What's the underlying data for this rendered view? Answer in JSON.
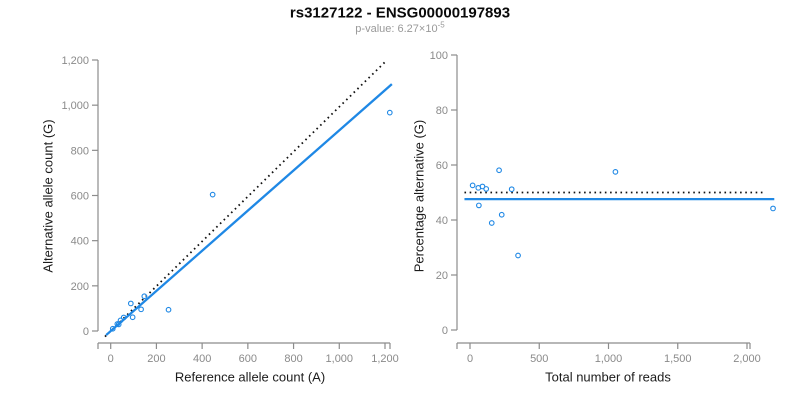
{
  "header": {
    "title": "rs3127122 - ENSG00000197893",
    "subtitle_main": "p-value: 6.27×10",
    "subtitle_exponent": "-5"
  },
  "colors": {
    "accent_blue": "#1f88e5",
    "dotted_black": "#111111",
    "axis_gray": "#8c8c8c",
    "tick_label_gray": "#8a8a8a",
    "subtitle_gray": "#999999",
    "title_black": "#0a0a0a"
  },
  "samples": [
    {
      "ref": 9,
      "alt": 10,
      "total": 19,
      "pct": 52.6
    },
    {
      "ref": 29,
      "alt": 31,
      "total": 60,
      "pct": 51.7
    },
    {
      "ref": 35,
      "alt": 29,
      "total": 64,
      "pct": 45.3
    },
    {
      "ref": 43,
      "alt": 47,
      "total": 90,
      "pct": 52.2
    },
    {
      "ref": 57,
      "alt": 60,
      "total": 117,
      "pct": 51.3
    },
    {
      "ref": 96,
      "alt": 61,
      "total": 157,
      "pct": 38.9
    },
    {
      "ref": 88,
      "alt": 122,
      "total": 210,
      "pct": 58.1
    },
    {
      "ref": 133,
      "alt": 96,
      "total": 229,
      "pct": 41.9
    },
    {
      "ref": 147,
      "alt": 154,
      "total": 301,
      "pct": 51.2
    },
    {
      "ref": 253,
      "alt": 94,
      "total": 347,
      "pct": 27.1
    },
    {
      "ref": 446,
      "alt": 604,
      "total": 1050,
      "pct": 57.5
    },
    {
      "ref": 1221,
      "alt": 967,
      "total": 2188,
      "pct": 44.2
    }
  ],
  "chart_data": [
    {
      "type": "scatter",
      "panel": "left",
      "title": "rs3127122 - ENSG00000197893",
      "subtitle": "p-value: 6.27×10^-5",
      "xlabel": "Reference allele count (A)",
      "ylabel": "Alternative allele count (G)",
      "xlim": [
        0,
        1200
      ],
      "ylim": [
        0,
        1200
      ],
      "grid": false,
      "legend": null,
      "xticks": {
        "values": [
          0,
          200,
          400,
          600,
          800,
          1000,
          1200
        ],
        "labels": [
          "0",
          "200",
          "400",
          "600",
          "800",
          "1,000",
          "1,200"
        ]
      },
      "yticks": {
        "values": [
          0,
          200,
          400,
          600,
          800,
          1000,
          1200
        ],
        "labels": [
          "0",
          "200",
          "400",
          "600",
          "800",
          "1,000",
          "1,200"
        ]
      },
      "points": [
        [
          9,
          10
        ],
        [
          29,
          31
        ],
        [
          35,
          29
        ],
        [
          43,
          47
        ],
        [
          57,
          60
        ],
        [
          96,
          61
        ],
        [
          88,
          122
        ],
        [
          133,
          96
        ],
        [
          147,
          154
        ],
        [
          253,
          94
        ],
        [
          446,
          604
        ],
        [
          1221,
          967
        ]
      ],
      "lines": [
        {
          "name": "identity-line",
          "style": "dotted",
          "color_key": "dotted_black",
          "width": 1.8,
          "from": [
            -25,
            -25
          ],
          "to": [
            1209,
            1200
          ]
        },
        {
          "name": "regression-line",
          "style": "solid",
          "color_key": "accent_blue",
          "width": 2.3,
          "from": [
            -20,
            -18
          ],
          "to": [
            1230,
            1093
          ]
        }
      ]
    },
    {
      "type": "scatter",
      "panel": "right",
      "xlabel": "Total number of reads",
      "ylabel": "Percentage alternative (G)",
      "xlim": [
        0,
        2000
      ],
      "ylim": [
        0,
        100
      ],
      "grid": false,
      "legend": null,
      "xticks": {
        "values": [
          0,
          500,
          1000,
          1500,
          2000
        ],
        "labels": [
          "0",
          "500",
          "1,000",
          "1,500",
          "2,000"
        ]
      },
      "yticks": {
        "values": [
          0,
          20,
          40,
          60,
          80,
          100
        ],
        "labels": [
          "0",
          "20",
          "40",
          "60",
          "80",
          "100"
        ]
      },
      "points": [
        [
          19,
          52.6
        ],
        [
          60,
          51.7
        ],
        [
          64,
          45.3
        ],
        [
          90,
          52.2
        ],
        [
          117,
          51.3
        ],
        [
          157,
          38.9
        ],
        [
          210,
          58.1
        ],
        [
          229,
          41.9
        ],
        [
          301,
          51.2
        ],
        [
          347,
          27.1
        ],
        [
          1050,
          57.5
        ],
        [
          2188,
          44.2
        ]
      ],
      "lines": [
        {
          "name": "expected-50pct-line",
          "style": "dotted",
          "color_key": "dotted_black",
          "width": 1.8,
          "from": [
            -40,
            50
          ],
          "to": [
            2115,
            50
          ]
        },
        {
          "name": "fitted-pct-line",
          "style": "solid",
          "color_key": "accent_blue",
          "width": 2.3,
          "from": [
            -40,
            47.6
          ],
          "to": [
            2197,
            47.6
          ]
        }
      ]
    }
  ]
}
